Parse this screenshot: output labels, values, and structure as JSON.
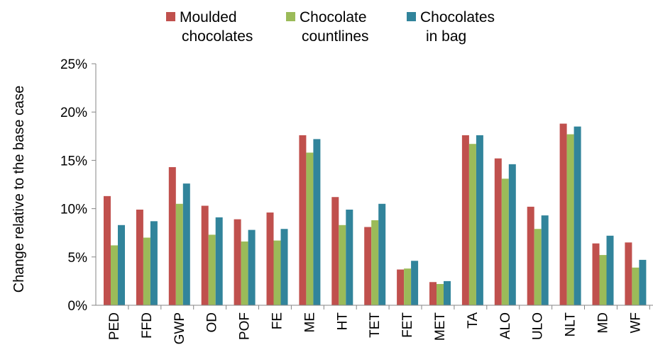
{
  "chart_data": {
    "type": "bar",
    "ylabel": "Change relative to the base case",
    "ylim": [
      0,
      25
    ],
    "y_ticks": [
      "0%",
      "5%",
      "10%",
      "15%",
      "20%",
      "25%"
    ],
    "grid": false,
    "legend_placement": "top",
    "categories": [
      "PED",
      "FFD",
      "GWP",
      "OD",
      "POF",
      "FE",
      "ME",
      "HT",
      "TET",
      "FET",
      "MET",
      "TA",
      "ALO",
      "ULO",
      "NLT",
      "MD",
      "WF"
    ],
    "series": [
      {
        "name": "Moulded chocolates",
        "legend_lines": [
          "Moulded",
          "chocolates"
        ],
        "color": "#c0504d",
        "values": [
          11.3,
          9.9,
          14.3,
          10.3,
          8.9,
          9.6,
          17.6,
          11.2,
          8.1,
          3.7,
          2.4,
          17.6,
          15.2,
          10.2,
          18.8,
          6.4,
          6.5
        ]
      },
      {
        "name": "Chocolate countlines",
        "legend_lines": [
          "Chocolate",
          "countlines"
        ],
        "color": "#9bbb59",
        "values": [
          6.2,
          7.0,
          10.5,
          7.3,
          6.6,
          6.7,
          15.8,
          8.3,
          8.8,
          3.8,
          2.2,
          16.7,
          13.1,
          7.9,
          17.7,
          5.2,
          3.9
        ]
      },
      {
        "name": "Chocolates in bag",
        "legend_lines": [
          "Chocolates",
          "in bag"
        ],
        "color": "#31849b",
        "values": [
          8.3,
          8.7,
          12.6,
          9.1,
          7.8,
          7.9,
          17.2,
          9.9,
          10.5,
          4.6,
          2.5,
          17.6,
          14.6,
          9.3,
          18.5,
          7.2,
          4.7
        ]
      }
    ]
  }
}
